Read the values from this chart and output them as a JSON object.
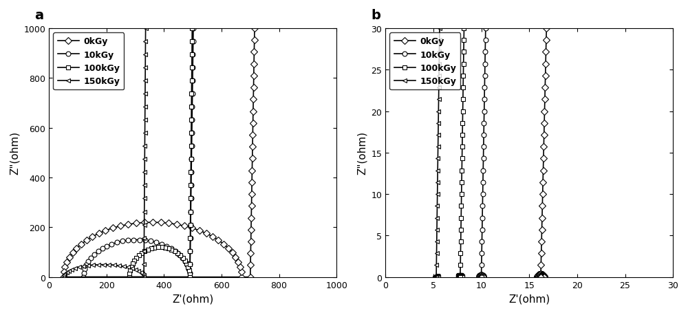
{
  "labels": [
    "0kGy",
    "10kGy",
    "100kGy",
    "150kGy"
  ],
  "markers": [
    "D",
    "o",
    "s",
    "<"
  ],
  "panel_a": {
    "xlim": [
      0,
      1000
    ],
    "ylim": [
      0,
      1000
    ],
    "xticks": [
      0,
      200,
      400,
      600,
      800,
      1000
    ],
    "yticks": [
      0,
      200,
      400,
      600,
      800,
      1000
    ],
    "series": {
      "0kGy": {
        "Rb": 50,
        "Rct": 650,
        "r_semi": 110,
        "x_semi_c": 155,
        "spike_x": 700,
        "n_semi": 35,
        "n_spike": 22
      },
      "10kGy": {
        "Rb": 120,
        "Rct": 380,
        "r_semi": 75,
        "x_semi_c": 255,
        "spike_x": 490,
        "n_semi": 30,
        "n_spike": 20
      },
      "100kGy": {
        "Rb": 280,
        "Rct": 210,
        "r_semi": 55,
        "x_semi_c": 360,
        "spike_x": 490,
        "n_semi": 28,
        "n_spike": 20
      },
      "150kGy": {
        "Rb": 50,
        "Rct": 280,
        "r_semi": 25,
        "x_semi_c": 100,
        "spike_x": 330,
        "n_semi": 25,
        "n_spike": 20
      }
    }
  },
  "panel_b": {
    "xlim": [
      0,
      30
    ],
    "ylim": [
      0,
      30
    ],
    "xticks": [
      0,
      5,
      10,
      15,
      20,
      25,
      30
    ],
    "yticks": [
      0,
      5,
      10,
      15,
      20,
      25,
      30
    ],
    "series": {
      "0kGy": {
        "x_spike": 16.5,
        "x_tilt": 0.5,
        "n_spike": 25,
        "r_semi": 0.4
      },
      "10kGy": {
        "x_spike": 10.2,
        "x_tilt": 0.3,
        "n_spike": 25,
        "r_semi": 0.3
      },
      "100kGy": {
        "x_spike": 8.0,
        "x_tilt": 0.25,
        "n_spike": 25,
        "r_semi": 0.25
      },
      "150kGy": {
        "x_spike": 5.5,
        "x_tilt": 0.2,
        "n_spike": 25,
        "r_semi": 0.2
      }
    }
  },
  "xlabel": "Z'(ohm)",
  "ylabel": "Z\"(ohm)",
  "label_fontsize": 11,
  "legend_fontsize": 9,
  "marker_size": 5,
  "line_width": 1.2,
  "title_fontsize": 14
}
